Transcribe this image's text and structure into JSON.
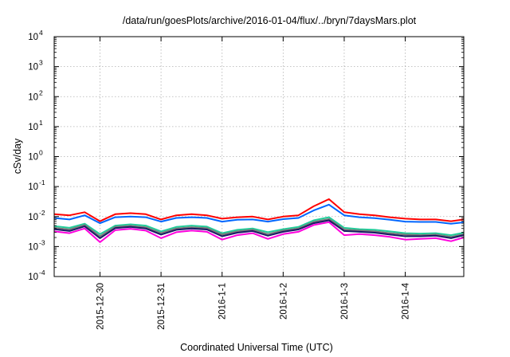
{
  "chart_data": {
    "type": "line",
    "title": "/data/run/goesPlots/archive/2016-01-04/flux/../bryn/7daysMars.plot",
    "xlabel": "Coordinated Universal Time (UTC)",
    "ylabel": "cSv/day",
    "yscale": "log",
    "ylim": [
      0.0001,
      10000
    ],
    "xlim": [
      "2015-12-29 06:00",
      "2016-01-04 23:00"
    ],
    "grid": true,
    "xticks": [
      {
        "x": "2015-12-30",
        "label": "2015-12-30"
      },
      {
        "x": "2015-12-31",
        "label": "2015-12-31"
      },
      {
        "x": "2016-01-01",
        "label": "2016-1-1"
      },
      {
        "x": "2016-01-02",
        "label": "2016-1-2"
      },
      {
        "x": "2016-01-03",
        "label": "2016-1-3"
      },
      {
        "x": "2016-01-04",
        "label": "2016-1-4"
      }
    ],
    "yticks": [
      {
        "value": 0.0001,
        "base": "10",
        "exp": "-4"
      },
      {
        "value": 0.001,
        "base": "10",
        "exp": "-3"
      },
      {
        "value": 0.01,
        "base": "10",
        "exp": "-2"
      },
      {
        "value": 0.1,
        "base": "10",
        "exp": "-1"
      },
      {
        "value": 1,
        "base": "10",
        "exp": "0"
      },
      {
        "value": 10,
        "base": "10",
        "exp": "1"
      },
      {
        "value": 100,
        "base": "10",
        "exp": "2"
      },
      {
        "value": 1000,
        "base": "10",
        "exp": "3"
      },
      {
        "value": 10000,
        "base": "10",
        "exp": "4"
      }
    ],
    "x": [
      "2015-12-29 06:00",
      "2015-12-29 12:00",
      "2015-12-29 18:00",
      "2015-12-30 00:00",
      "2015-12-30 06:00",
      "2015-12-30 12:00",
      "2015-12-30 18:00",
      "2015-12-31 00:00",
      "2015-12-31 06:00",
      "2015-12-31 12:00",
      "2015-12-31 18:00",
      "2016-01-01 00:00",
      "2016-01-01 06:00",
      "2016-01-01 12:00",
      "2016-01-01 18:00",
      "2016-01-02 00:00",
      "2016-01-02 06:00",
      "2016-01-02 12:00",
      "2016-01-02 18:00",
      "2016-01-03 00:00",
      "2016-01-03 06:00",
      "2016-01-03 12:00",
      "2016-01-03 18:00",
      "2016-01-04 00:00",
      "2016-01-04 06:00",
      "2016-01-04 12:00",
      "2016-01-04 18:00",
      "2016-01-04 23:00"
    ],
    "series": [
      {
        "color": "#ff0000",
        "values": [
          0.012,
          0.011,
          0.014,
          0.007,
          0.012,
          0.013,
          0.012,
          0.008,
          0.011,
          0.012,
          0.011,
          0.0085,
          0.0095,
          0.01,
          0.008,
          0.01,
          0.011,
          0.022,
          0.038,
          0.014,
          0.012,
          0.011,
          0.0095,
          0.0085,
          0.008,
          0.008,
          0.007,
          0.008
        ]
      },
      {
        "color": "#0066ff",
        "values": [
          0.009,
          0.008,
          0.011,
          0.006,
          0.0095,
          0.01,
          0.0095,
          0.0068,
          0.009,
          0.0095,
          0.009,
          0.0068,
          0.0078,
          0.008,
          0.0068,
          0.0082,
          0.009,
          0.016,
          0.025,
          0.011,
          0.0095,
          0.0088,
          0.0078,
          0.0068,
          0.0066,
          0.0066,
          0.0058,
          0.0064
        ]
      },
      {
        "color": "#22cc99",
        "values": [
          0.0048,
          0.0042,
          0.0058,
          0.0026,
          0.005,
          0.0055,
          0.005,
          0.0032,
          0.0045,
          0.005,
          0.0046,
          0.0028,
          0.0036,
          0.004,
          0.003,
          0.0038,
          0.0045,
          0.0075,
          0.0095,
          0.0042,
          0.0038,
          0.0036,
          0.0032,
          0.0028,
          0.0027,
          0.0028,
          0.0024,
          0.0029
        ]
      },
      {
        "color": "#777777",
        "values": [
          0.0042,
          0.0037,
          0.0052,
          0.0022,
          0.0045,
          0.0049,
          0.0044,
          0.0028,
          0.004,
          0.0044,
          0.0041,
          0.0025,
          0.0032,
          0.0036,
          0.0026,
          0.0034,
          0.004,
          0.0066,
          0.0082,
          0.0037,
          0.0034,
          0.0032,
          0.0028,
          0.0025,
          0.0024,
          0.0025,
          0.0021,
          0.0026
        ]
      },
      {
        "color": "#1a1a66",
        "values": [
          0.0038,
          0.0033,
          0.0047,
          0.0019,
          0.0041,
          0.0045,
          0.004,
          0.0025,
          0.0036,
          0.004,
          0.0037,
          0.0022,
          0.0029,
          0.0033,
          0.0023,
          0.0031,
          0.0037,
          0.006,
          0.0075,
          0.0033,
          0.0031,
          0.0029,
          0.0025,
          0.0022,
          0.0022,
          0.0023,
          0.0019,
          0.0024
        ]
      },
      {
        "color": "#ff00dd",
        "values": [
          0.0032,
          0.0028,
          0.004,
          0.0014,
          0.0035,
          0.0039,
          0.0034,
          0.0019,
          0.003,
          0.0034,
          0.0031,
          0.0017,
          0.0024,
          0.0028,
          0.0018,
          0.0026,
          0.0031,
          0.0052,
          0.0065,
          0.0024,
          0.0026,
          0.0024,
          0.0021,
          0.0017,
          0.0018,
          0.0019,
          0.0015,
          0.002
        ]
      }
    ]
  }
}
